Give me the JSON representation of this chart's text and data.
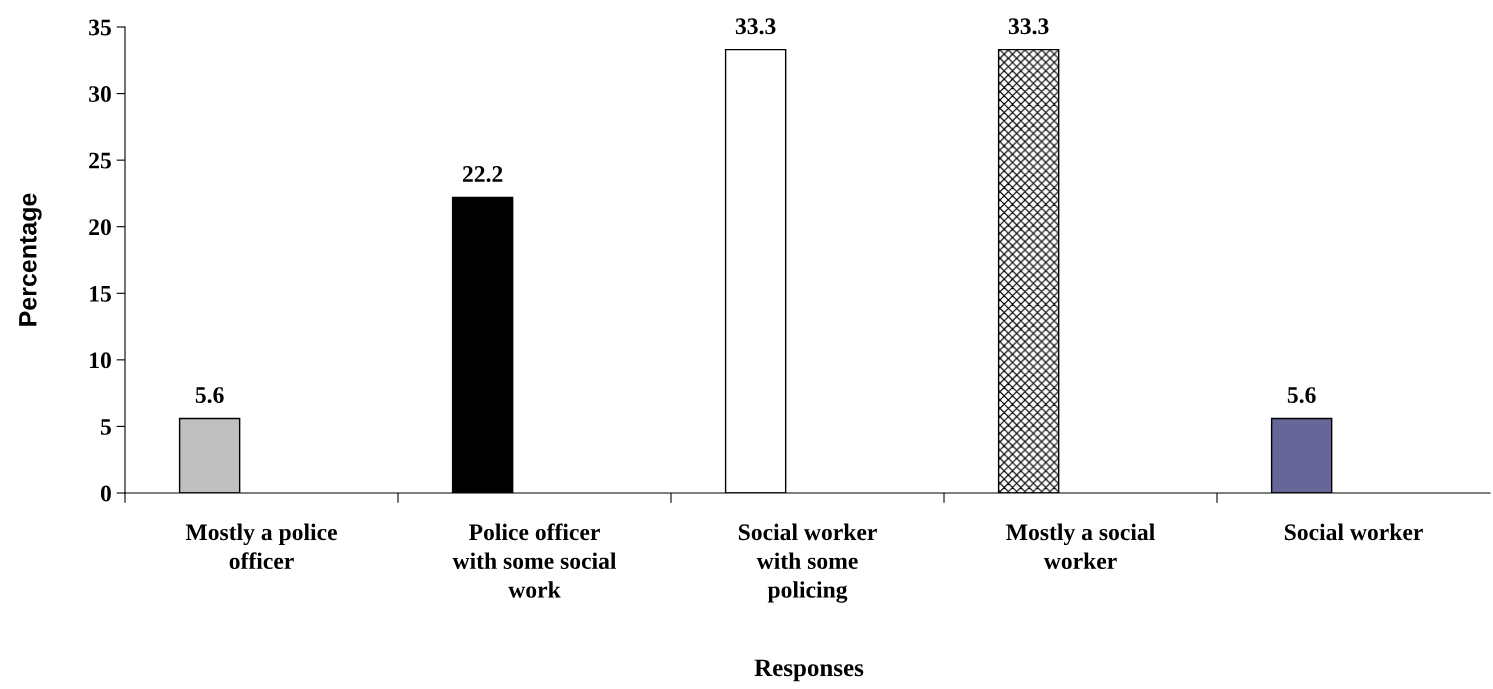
{
  "chart_data": {
    "type": "bar",
    "categories": [
      "Mostly a police\nofficer",
      "Police officer\nwith some social\nwork",
      "Social worker\nwith some\npolicing",
      "Mostly a social\nworker",
      "Social worker"
    ],
    "values": [
      5.6,
      22.2,
      33.3,
      33.3,
      5.6
    ],
    "colors": [
      "#c0c0c0",
      "#000000",
      "#ffffff",
      "#000000",
      "#666699"
    ],
    "xlabel": "Responses",
    "ylabel": "Percentage",
    "ylim": [
      0,
      35
    ],
    "yticks": [
      0,
      5,
      10,
      15,
      20,
      25,
      30,
      35
    ],
    "data_labels": true,
    "grid": false,
    "legend": false
  }
}
